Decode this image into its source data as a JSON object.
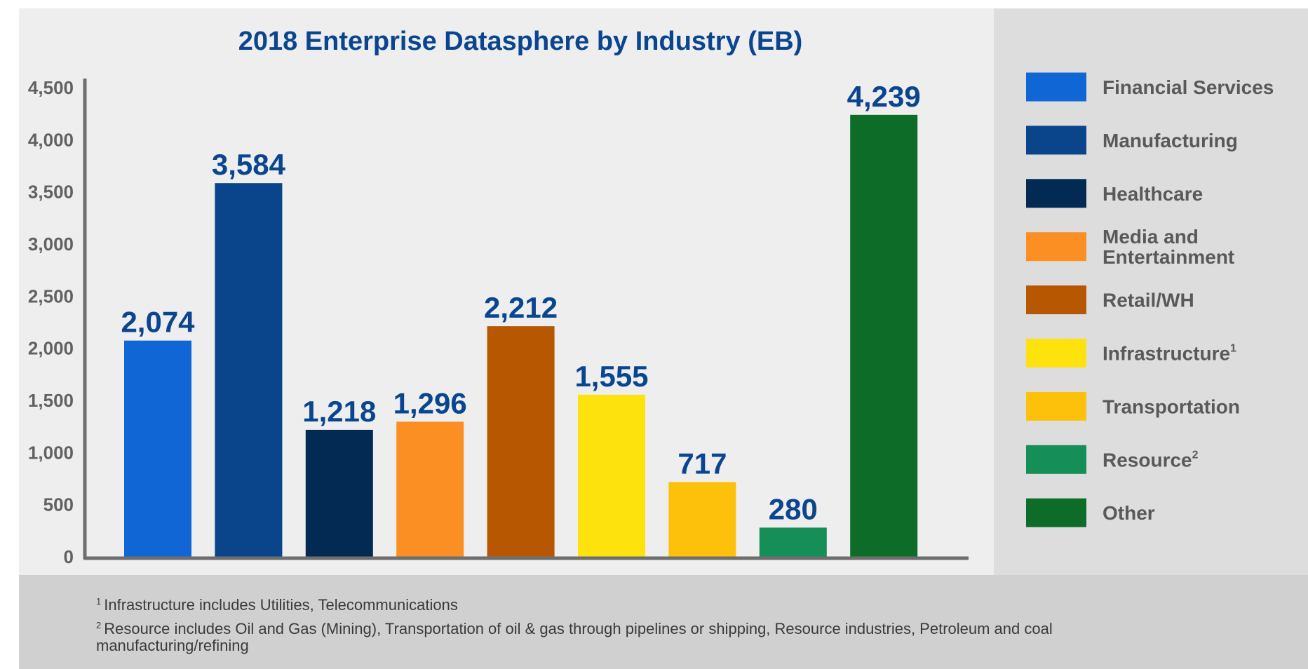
{
  "chart_data": {
    "type": "bar",
    "title": "2018 Enterprise Datasphere by Industry (EB)",
    "xlabel": "",
    "ylabel": "",
    "ylim": [
      0,
      4500
    ],
    "yticks": [
      0,
      500,
      1000,
      1500,
      2000,
      2500,
      3000,
      3500,
      4000,
      4500
    ],
    "ytick_labels": [
      "0",
      "500",
      "1,000",
      "1,500",
      "2,000",
      "2,500",
      "3,000",
      "3,500",
      "4,000",
      "4,500"
    ],
    "grid": false,
    "legend_position": "right",
    "categories": [
      "Financial Services",
      "Manufacturing",
      "Healthcare",
      "Media and Entertainment",
      "Retail/WH",
      "Infrastructure",
      "Transportation",
      "Resource",
      "Other"
    ],
    "values": [
      2074,
      3584,
      1218,
      1296,
      2212,
      1555,
      717,
      280,
      4239
    ],
    "data_labels": [
      "2,074",
      "3,584",
      "1,218",
      "1,296",
      "2,212",
      "1,555",
      "717",
      "280",
      "4,239"
    ],
    "colors": [
      "#1066d4",
      "#0a458c",
      "#032a52",
      "#fb8f24",
      "#b75702",
      "#fde20d",
      "#fdc00b",
      "#158e58",
      "#0e6c29"
    ],
    "legend": [
      {
        "lines": [
          "Financial Services"
        ],
        "sup": ""
      },
      {
        "lines": [
          "Manufacturing"
        ],
        "sup": ""
      },
      {
        "lines": [
          "Healthcare"
        ],
        "sup": ""
      },
      {
        "lines": [
          "Media and",
          "Entertainment"
        ],
        "sup": ""
      },
      {
        "lines": [
          "Retail/WH"
        ],
        "sup": ""
      },
      {
        "lines": [
          "Infrastructure"
        ],
        "sup": "1"
      },
      {
        "lines": [
          "Transportation"
        ],
        "sup": ""
      },
      {
        "lines": [
          "Resource"
        ],
        "sup": "2"
      },
      {
        "lines": [
          "Other"
        ],
        "sup": ""
      }
    ],
    "footnotes": [
      {
        "mark": "1",
        "text": "Infrastructure includes Utilities, Telecommunications"
      },
      {
        "mark": "2",
        "text": "Resource includes Oil and Gas (Mining), Transportation of oil & gas through pipelines or shipping, Resource industries, Petroleum and coal manufacturing/refining"
      }
    ]
  }
}
